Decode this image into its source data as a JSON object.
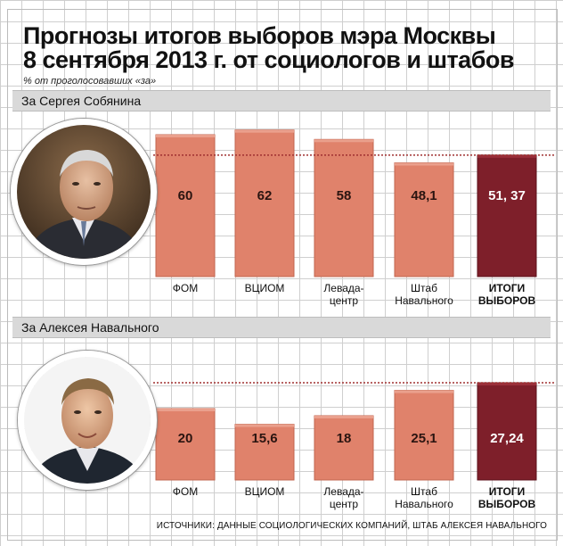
{
  "header": {
    "title_line1": "Прогнозы итогов выборов мэра Москвы",
    "title_line2": "8 сентября 2013 г. от социологов и штабов",
    "subtitle": "% от проголосовавших «за»"
  },
  "sections": [
    {
      "label": "За Сергея Собянина"
    },
    {
      "label": "За Алексея Навального"
    }
  ],
  "footer": {
    "source": "ИСТОЧНИКИ: ДАННЫЕ СОЦИОЛОГИЧЕСКИХ КОМПАНИЙ, ШТАБ АЛЕКСЕЯ НАВАЛЬНОГО"
  },
  "colors": {
    "forecast_bar": "#e0826b",
    "result_bar": "#7e1f2a",
    "result_line": "#a03030"
  },
  "chart_data": [
    {
      "type": "bar",
      "title": "За Сергея Собянина",
      "categories": [
        "ФОМ",
        "ВЦИОМ",
        "Левада-центр",
        "Штаб Навального",
        "ИТОГИ ВЫБОРОВ"
      ],
      "category_lines": [
        [
          "ФОМ"
        ],
        [
          "ВЦИОМ"
        ],
        [
          "Левада-",
          "центр"
        ],
        [
          "Штаб",
          "Навального"
        ],
        [
          "ИТОГИ",
          "ВЫБОРОВ"
        ]
      ],
      "values": [
        60,
        62,
        58,
        48.1,
        51.37
      ],
      "value_labels": [
        "60",
        "62",
        "58",
        "48,1",
        "51, 37"
      ],
      "reference_line": 51.37,
      "xlabel": "",
      "ylabel": ""
    },
    {
      "type": "bar",
      "title": "За Алексея Навального",
      "categories": [
        "ФОМ",
        "ВЦИОМ",
        "Левада-центр",
        "Штаб Навального",
        "ИТОГИ ВЫБОРОВ"
      ],
      "category_lines": [
        [
          "ФОМ"
        ],
        [
          "ВЦИОМ"
        ],
        [
          "Левада-",
          "центр"
        ],
        [
          "Штаб",
          "Навального"
        ],
        [
          "ИТОГИ",
          "ВЫБОРОВ"
        ]
      ],
      "values": [
        20,
        15.6,
        18,
        25.1,
        27.24
      ],
      "value_labels": [
        "20",
        "15,6",
        "18",
        "25,1",
        "27,24"
      ],
      "reference_line": 27.24,
      "xlabel": "",
      "ylabel": ""
    }
  ]
}
